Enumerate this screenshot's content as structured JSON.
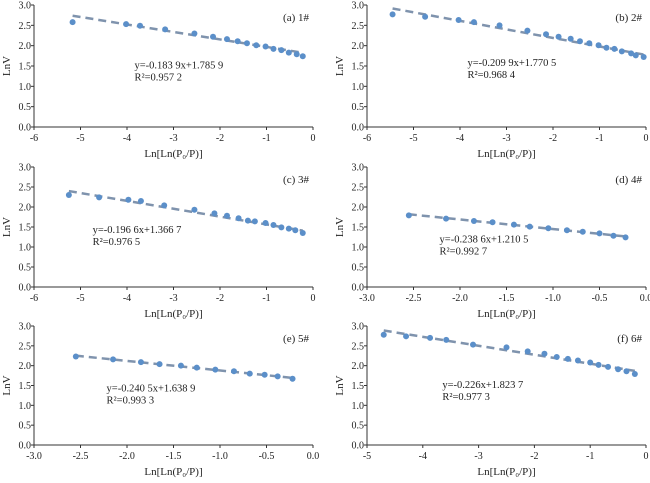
{
  "colors": {
    "point": "#5b8fc9",
    "line": "#7f93ad",
    "axis": "#333333"
  },
  "chart_data": [
    {
      "type": "scatter",
      "title": "(a) 1#",
      "xlabel": "Ln[Ln(P0/P)]",
      "ylabel": "LnV",
      "xlim": [
        -6,
        0
      ],
      "ylim": [
        0,
        3
      ],
      "xticks": [
        "-6",
        "-5",
        "-4",
        "-3",
        "-2",
        "-1",
        "0"
      ],
      "yticks": [
        "0.0",
        "0.5",
        "1.0",
        "1.5",
        "2.0",
        "2.5",
        "3.0"
      ],
      "equation": "y=-0.183 9x+1.785 9",
      "r2": "R²=0.957 2",
      "slope": -0.1839,
      "intercept": 1.7859,
      "x": [
        -5.17,
        -4.02,
        -3.72,
        -3.18,
        -2.55,
        -2.15,
        -1.85,
        -1.62,
        -1.42,
        -1.22,
        -1.02,
        -0.85,
        -0.68,
        -0.52,
        -0.35,
        -0.22
      ],
      "y": [
        2.58,
        2.53,
        2.49,
        2.4,
        2.3,
        2.22,
        2.16,
        2.11,
        2.06,
        2.01,
        1.98,
        1.92,
        1.89,
        1.83,
        1.79,
        1.74
      ]
    },
    {
      "type": "scatter",
      "title": "(b) 2#",
      "xlabel": "Ln[Ln(P0/P)]",
      "ylabel": "LnV",
      "xlim": [
        -6,
        0
      ],
      "ylim": [
        0,
        3
      ],
      "xticks": [
        "-6",
        "-5",
        "-4",
        "-3",
        "-2",
        "-1",
        "0"
      ],
      "yticks": [
        "0.0",
        "0.5",
        "1.0",
        "1.5",
        "2.0",
        "2.5",
        "3.0"
      ],
      "equation": "y=-0.209 9x+1.770 5",
      "r2": "R²=0.968 4",
      "slope": -0.2099,
      "intercept": 1.7705,
      "x": [
        -5.45,
        -4.75,
        -4.03,
        -3.7,
        -3.15,
        -2.55,
        -2.15,
        -1.88,
        -1.62,
        -1.42,
        -1.22,
        -1.02,
        -0.85,
        -0.68,
        -0.52,
        -0.32,
        -0.22,
        -0.05
      ],
      "y": [
        2.77,
        2.71,
        2.63,
        2.58,
        2.5,
        2.37,
        2.28,
        2.22,
        2.17,
        2.11,
        2.06,
        2.01,
        1.95,
        1.92,
        1.86,
        1.81,
        1.76,
        1.72
      ]
    },
    {
      "type": "scatter",
      "title": "(c) 3#",
      "xlabel": "Ln[Ln(P0/P)]",
      "ylabel": "LnV",
      "xlim": [
        -6,
        0
      ],
      "ylim": [
        0,
        3
      ],
      "xticks": [
        "-6",
        "-5",
        "-4",
        "-3",
        "-2",
        "-1",
        "0"
      ],
      "yticks": [
        "0.0",
        "0.5",
        "1.0",
        "1.5",
        "2.0",
        "2.5",
        "3.0"
      ],
      "equation": "y=-0.196 6x+1.366 7",
      "r2": "R²=0.976 5",
      "slope": -0.1966,
      "intercept": 1.3667,
      "x": [
        -5.25,
        -4.6,
        -3.97,
        -3.7,
        -3.2,
        -2.55,
        -2.12,
        -1.85,
        -1.6,
        -1.4,
        -1.25,
        -1.02,
        -0.85,
        -0.68,
        -0.52,
        -0.38,
        -0.22
      ],
      "y": [
        2.3,
        2.24,
        2.18,
        2.15,
        2.04,
        1.93,
        1.84,
        1.78,
        1.72,
        1.66,
        1.64,
        1.6,
        1.55,
        1.49,
        1.46,
        1.42,
        1.35
      ]
    },
    {
      "type": "scatter",
      "title": "(d) 4#",
      "xlabel": "Ln[Ln(P0/P)]",
      "ylabel": "LnV",
      "xlim": [
        -3,
        0
      ],
      "ylim": [
        0,
        3
      ],
      "xticks": [
        "-3.0",
        "-2.5",
        "-2.0",
        "-1.5",
        "-1.0",
        "-0.5",
        "0.0"
      ],
      "yticks": [
        "0.0",
        "0.5",
        "1.0",
        "1.5",
        "2.0",
        "2.5",
        "3.0"
      ],
      "equation": "y=-0.238 6x+1.210 5",
      "r2": "R²=0.992 7",
      "slope": -0.2386,
      "intercept": 1.2105,
      "x": [
        -2.55,
        -2.15,
        -1.85,
        -1.65,
        -1.42,
        -1.25,
        -1.05,
        -0.85,
        -0.68,
        -0.5,
        -0.35,
        -0.22
      ],
      "y": [
        1.79,
        1.71,
        1.65,
        1.62,
        1.56,
        1.51,
        1.47,
        1.42,
        1.38,
        1.34,
        1.28,
        1.24
      ]
    },
    {
      "type": "scatter",
      "title": "(e) 5#",
      "xlabel": "Ln[Ln(P0/P)]",
      "ylabel": "LnV",
      "xlim": [
        -3,
        0
      ],
      "ylim": [
        0,
        3
      ],
      "xticks": [
        "-3.0",
        "-2.5",
        "-2.0",
        "-1.5",
        "-1.0",
        "-0.5",
        "0.0"
      ],
      "yticks": [
        "0.0",
        "0.5",
        "1.0",
        "1.5",
        "2.0",
        "2.5",
        "3.0"
      ],
      "equation": "y=-0.240 5x+1.638 9",
      "r2": "R²=0.993 3",
      "slope": -0.2405,
      "intercept": 1.6389,
      "x": [
        -2.55,
        -2.15,
        -1.85,
        -1.65,
        -1.42,
        -1.25,
        -1.05,
        -0.85,
        -0.68,
        -0.52,
        -0.38,
        -0.22
      ],
      "y": [
        2.23,
        2.16,
        2.09,
        2.04,
        2.0,
        1.95,
        1.9,
        1.86,
        1.8,
        1.77,
        1.73,
        1.67
      ]
    },
    {
      "type": "scatter",
      "title": "(f) 6#",
      "xlabel": "Ln[Ln(P0/P)]",
      "ylabel": "LnV",
      "xlim": [
        -5,
        0
      ],
      "ylim": [
        0,
        3
      ],
      "xticks": [
        "-5",
        "-4",
        "-3",
        "-2",
        "-1",
        "0"
      ],
      "yticks": [
        "0.0",
        "0.5",
        "1.0",
        "1.5",
        "2.0",
        "2.5",
        "3.0"
      ],
      "equation": "y=-0.226x+1.823 7",
      "r2": "R²=0.977 3",
      "slope": -0.226,
      "intercept": 1.8237,
      "x": [
        -4.7,
        -4.3,
        -3.87,
        -3.58,
        -3.1,
        -2.5,
        -2.12,
        -1.82,
        -1.6,
        -1.4,
        -1.22,
        -1.0,
        -0.85,
        -0.68,
        -0.5,
        -0.35,
        -0.2
      ],
      "y": [
        2.78,
        2.74,
        2.7,
        2.65,
        2.53,
        2.46,
        2.36,
        2.3,
        2.22,
        2.17,
        2.13,
        2.08,
        2.02,
        1.97,
        1.91,
        1.86,
        1.79
      ]
    }
  ]
}
